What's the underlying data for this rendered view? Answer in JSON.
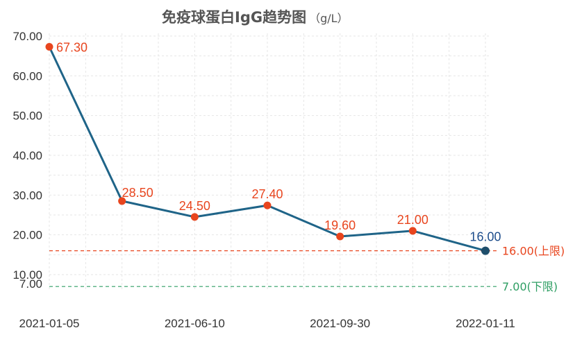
{
  "chart_data": {
    "type": "line",
    "title": "免疫球蛋白IgG趋势图",
    "unit": "（g/L）",
    "categories": [
      "2021-01-05",
      "",
      "2021-06-10",
      "",
      "2021-09-30",
      "",
      "2022-01-11"
    ],
    "series": [
      {
        "values": [
          67.3,
          28.5,
          24.5,
          27.4,
          19.6,
          21.0,
          16.0
        ],
        "labels": [
          "67.30",
          "28.50",
          "24.50",
          "27.40",
          "19.60",
          "21.00",
          "16.00"
        ]
      }
    ],
    "xticks": [
      "2021-01-05",
      "2021-06-10",
      "2021-09-30",
      "2022-01-11"
    ],
    "yticks": [
      "70.00",
      "60.00",
      "50.00",
      "40.00",
      "30.00",
      "20.00",
      "10.00",
      "7.00"
    ],
    "ytick_values": [
      70,
      60,
      50,
      40,
      30,
      20,
      10,
      7
    ],
    "ylim": [
      7,
      70
    ],
    "reference_lines": [
      {
        "value": 16.0,
        "label": "16.00(上限)",
        "color": "#e8451e",
        "style": "dashed"
      },
      {
        "value": 7.0,
        "label": "7.00(下限)",
        "color": "#2e9e63",
        "style": "dashed"
      }
    ],
    "grid": true,
    "colors": {
      "line": "#1f6488",
      "point": "#e8451e",
      "last_point": "#1f4e6b",
      "last_label": "#1e4e8c",
      "grid": "#e6e6e6",
      "tick_text": "#333333",
      "title_text": "#555555"
    }
  }
}
